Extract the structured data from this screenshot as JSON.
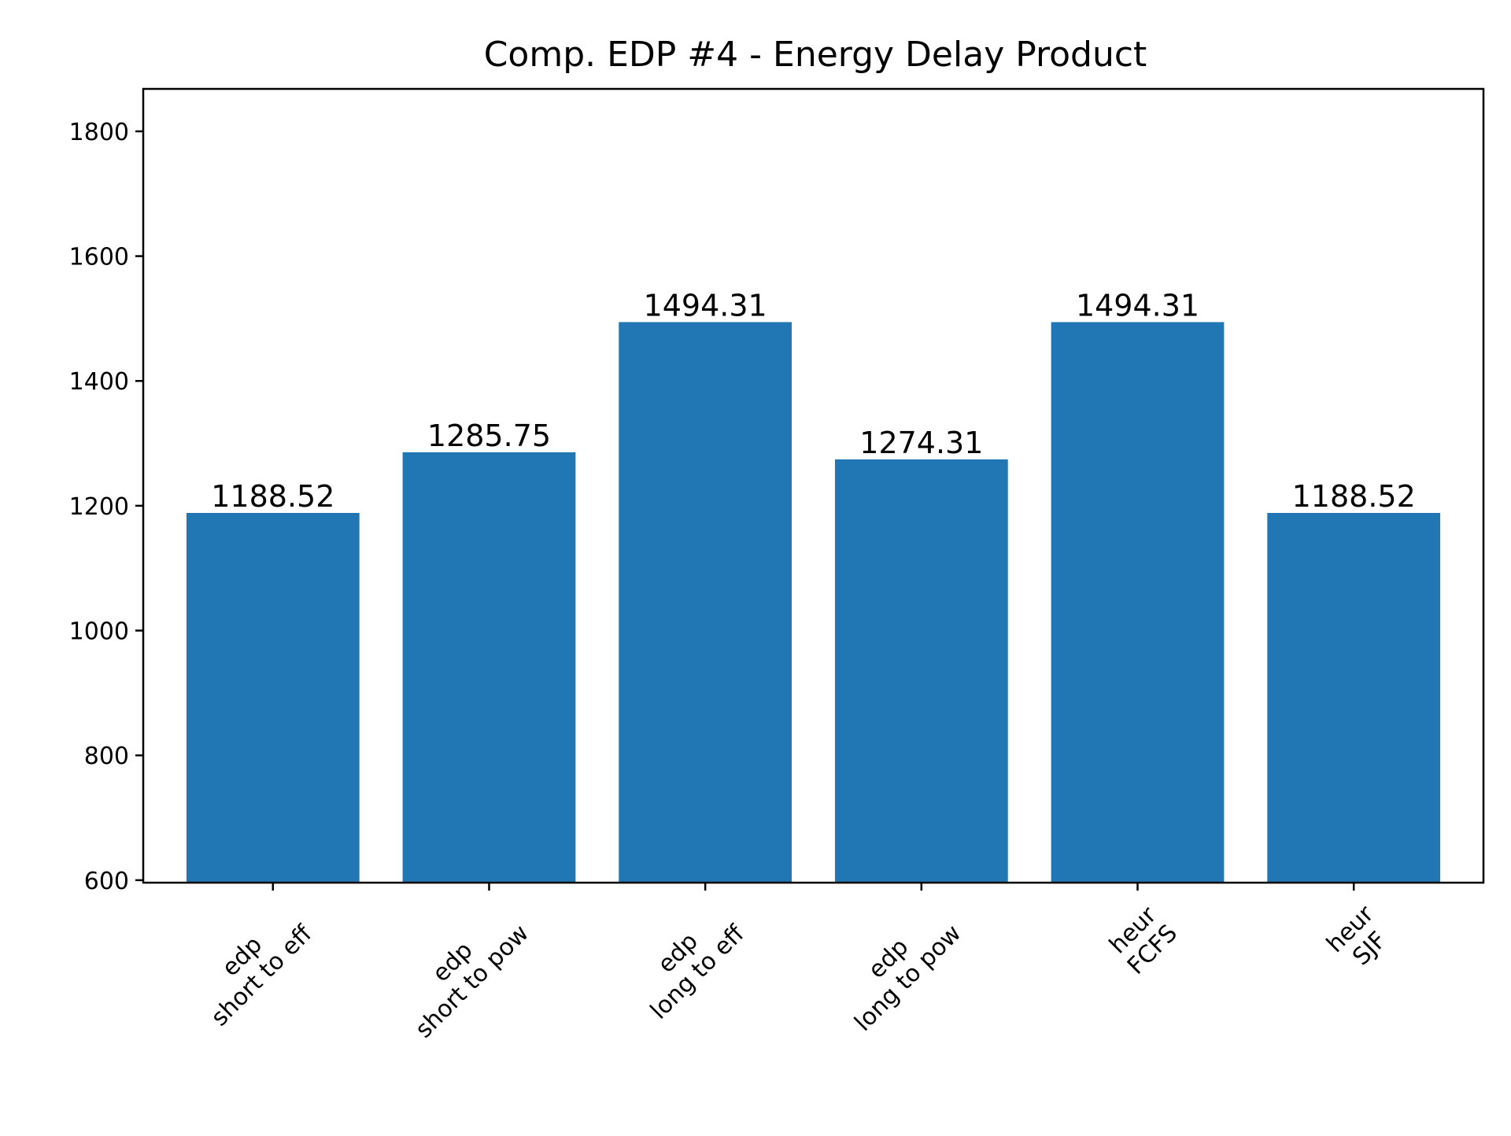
{
  "chart_data": {
    "type": "bar",
    "title": "Comp. EDP #4 - Energy Delay Product",
    "xlabel": "",
    "ylabel": "",
    "categories": [
      [
        "edp",
        "short to eff"
      ],
      [
        "edp",
        "short to pow"
      ],
      [
        "edp",
        "long to eff"
      ],
      [
        "edp",
        "long to pow"
      ],
      [
        "heur",
        "FCFS"
      ],
      [
        "heur",
        "SJF"
      ]
    ],
    "values": [
      1188.52,
      1285.75,
      1494.31,
      1274.31,
      1494.31,
      1188.52
    ],
    "data_labels": [
      "1188.52",
      "1285.75",
      "1494.31",
      "1274.31",
      "1494.31",
      "1188.52"
    ],
    "ylim": [
      596,
      1868
    ],
    "yticks": [
      600,
      800,
      1000,
      1200,
      1400,
      1600,
      1800
    ],
    "grid": false,
    "legend": "none",
    "bar_color": "#2077b4",
    "x_tick_rotation_deg": 45
  }
}
